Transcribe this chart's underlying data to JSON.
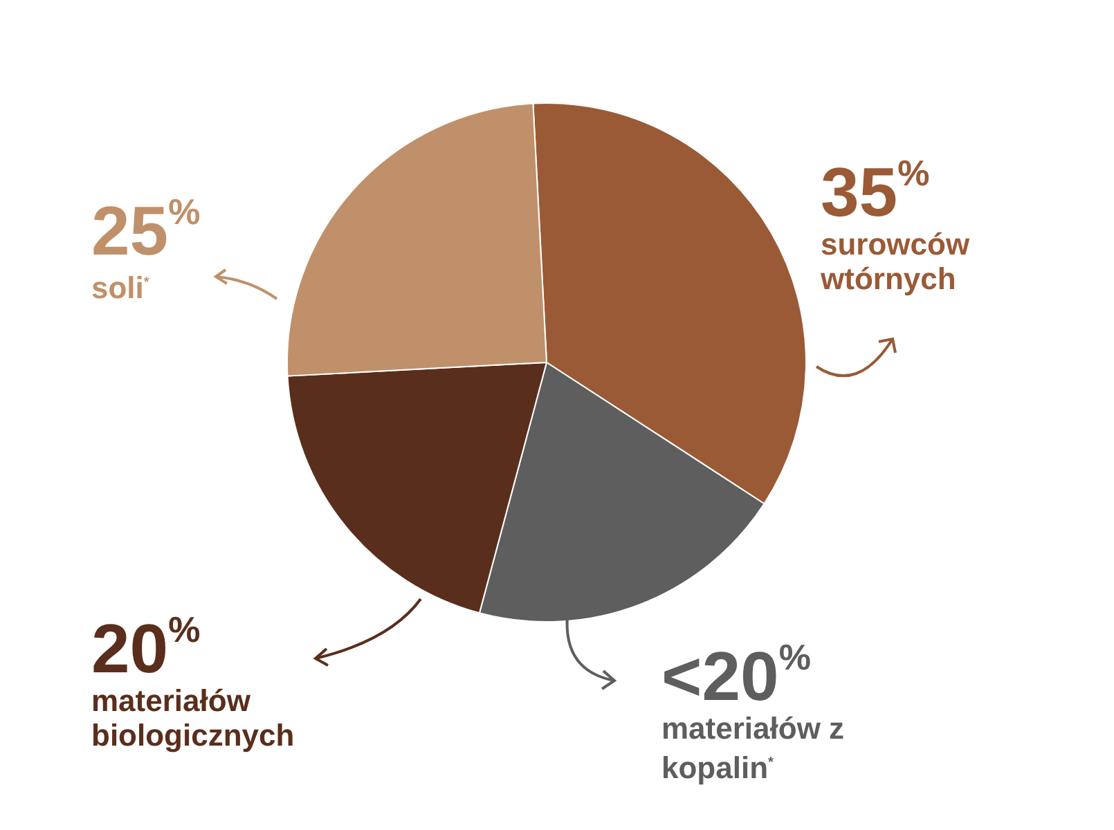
{
  "chart_data": {
    "type": "pie",
    "categories": [
      "surowców wtórnych",
      "materiałów z kopalin$^{*}$",
      "materiałów biologicznych",
      "soli$^{*}$"
    ],
    "values": [
      35,
      20,
      20,
      25
    ],
    "colors": [
      "#9a5a36",
      "#5e5e5e",
      "#5a2e1c",
      "#c0906a"
    ],
    "value_labels": [
      "35$^{%}$",
      "<20$^{%}$",
      "20$^{%}$",
      "25$^{%}$"
    ]
  }
}
